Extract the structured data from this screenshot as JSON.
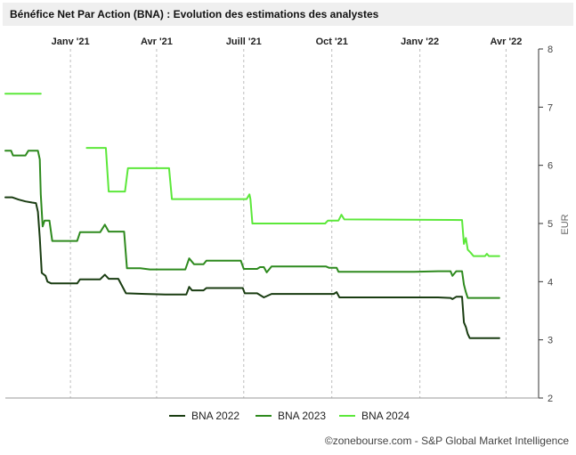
{
  "header": {
    "title": "Bénéfice Net Par Action (BNA) : Evolution des estimations des analystes"
  },
  "footer": {
    "copyright": "©zonebourse.com - S&P Global Market Intelligence"
  },
  "chart_data": {
    "type": "line",
    "title": "Bénéfice Net Par Action (BNA) : Evolution des estimations des analystes",
    "ylabel": "EUR",
    "ylim": [
      2,
      8
    ],
    "yticks": [
      "8",
      "7",
      "6",
      "5",
      "4",
      "3",
      "2"
    ],
    "xlim": [
      "2020-10-25",
      "2022-05-05"
    ],
    "xticks": [
      {
        "date": "2021-01-01",
        "label": "Janv '21"
      },
      {
        "date": "2021-04-01",
        "label": "Avr '21"
      },
      {
        "date": "2021-07-01",
        "label": "Juill '21"
      },
      {
        "date": "2021-10-01",
        "label": "Oct '21"
      },
      {
        "date": "2022-01-01",
        "label": "Janv '22"
      },
      {
        "date": "2022-04-01",
        "label": "Avr '22"
      }
    ],
    "grid": "vertical-dashed",
    "legend_position": "bottom-center",
    "series": [
      {
        "name": "BNA 2022",
        "color": "#1a3d12",
        "points": [
          [
            "2020-10-25",
            5.45
          ],
          [
            "2020-11-01",
            5.45
          ],
          [
            "2020-11-08",
            5.41
          ],
          [
            "2020-11-15",
            5.38
          ],
          [
            "2020-11-22",
            5.36
          ],
          [
            "2020-11-26",
            5.35
          ],
          [
            "2020-11-28",
            5.2
          ],
          [
            "2020-11-30",
            4.75
          ],
          [
            "2020-12-02",
            4.15
          ],
          [
            "2020-12-06",
            4.1
          ],
          [
            "2020-12-08",
            4.0
          ],
          [
            "2020-12-12",
            3.97
          ],
          [
            "2020-12-25",
            3.97
          ],
          [
            "2021-01-08",
            3.97
          ],
          [
            "2021-01-11",
            4.04
          ],
          [
            "2021-01-25",
            4.04
          ],
          [
            "2021-02-01",
            4.04
          ],
          [
            "2021-02-06",
            4.12
          ],
          [
            "2021-02-10",
            4.05
          ],
          [
            "2021-02-20",
            4.05
          ],
          [
            "2021-02-28",
            3.8
          ],
          [
            "2021-03-20",
            3.79
          ],
          [
            "2021-04-10",
            3.78
          ],
          [
            "2021-05-02",
            3.78
          ],
          [
            "2021-05-05",
            3.91
          ],
          [
            "2021-05-08",
            3.85
          ],
          [
            "2021-05-20",
            3.85
          ],
          [
            "2021-05-23",
            3.89
          ],
          [
            "2021-06-30",
            3.89
          ],
          [
            "2021-07-02",
            3.8
          ],
          [
            "2021-07-15",
            3.8
          ],
          [
            "2021-07-22",
            3.73
          ],
          [
            "2021-07-30",
            3.79
          ],
          [
            "2021-09-30",
            3.79
          ],
          [
            "2021-10-03",
            3.79
          ],
          [
            "2021-10-06",
            3.82
          ],
          [
            "2021-10-09",
            3.73
          ],
          [
            "2021-12-05",
            3.73
          ],
          [
            "2021-12-26",
            3.73
          ],
          [
            "2022-01-20",
            3.73
          ],
          [
            "2022-02-02",
            3.72
          ],
          [
            "2022-02-04",
            3.7
          ],
          [
            "2022-02-08",
            3.74
          ],
          [
            "2022-02-14",
            3.74
          ],
          [
            "2022-02-16",
            3.3
          ],
          [
            "2022-02-18",
            3.22
          ],
          [
            "2022-02-20",
            3.1
          ],
          [
            "2022-02-22",
            3.03
          ],
          [
            "2022-03-25",
            3.03
          ]
        ]
      },
      {
        "name": "BNA 2023",
        "color": "#2e8a1e",
        "points": [
          [
            "2020-10-25",
            6.25
          ],
          [
            "2020-10-31",
            6.25
          ],
          [
            "2020-11-02",
            6.17
          ],
          [
            "2020-11-15",
            6.17
          ],
          [
            "2020-11-18",
            6.25
          ],
          [
            "2020-11-28",
            6.25
          ],
          [
            "2020-11-30",
            6.1
          ],
          [
            "2020-12-01",
            5.5
          ],
          [
            "2020-12-03",
            4.95
          ],
          [
            "2020-12-05",
            5.05
          ],
          [
            "2020-12-10",
            5.05
          ],
          [
            "2020-12-13",
            4.7
          ],
          [
            "2021-01-08",
            4.7
          ],
          [
            "2021-01-11",
            4.85
          ],
          [
            "2021-01-25",
            4.85
          ],
          [
            "2021-02-01",
            4.85
          ],
          [
            "2021-02-06",
            4.98
          ],
          [
            "2021-02-10",
            4.86
          ],
          [
            "2021-02-26",
            4.86
          ],
          [
            "2021-03-01",
            4.23
          ],
          [
            "2021-03-15",
            4.23
          ],
          [
            "2021-03-25",
            4.21
          ],
          [
            "2021-05-01",
            4.21
          ],
          [
            "2021-05-05",
            4.4
          ],
          [
            "2021-05-10",
            4.3
          ],
          [
            "2021-05-20",
            4.3
          ],
          [
            "2021-05-23",
            4.36
          ],
          [
            "2021-06-28",
            4.36
          ],
          [
            "2021-07-01",
            4.22
          ],
          [
            "2021-07-15",
            4.22
          ],
          [
            "2021-07-18",
            4.25
          ],
          [
            "2021-07-22",
            4.25
          ],
          [
            "2021-07-25",
            4.16
          ],
          [
            "2021-07-30",
            4.26
          ],
          [
            "2021-09-25",
            4.26
          ],
          [
            "2021-09-28",
            4.24
          ],
          [
            "2021-10-06",
            4.24
          ],
          [
            "2021-10-08",
            4.17
          ],
          [
            "2021-12-26",
            4.17
          ],
          [
            "2022-01-20",
            4.18
          ],
          [
            "2022-02-02",
            4.18
          ],
          [
            "2022-02-04",
            4.1
          ],
          [
            "2022-02-08",
            4.18
          ],
          [
            "2022-02-14",
            4.18
          ],
          [
            "2022-02-16",
            3.95
          ],
          [
            "2022-02-18",
            3.82
          ],
          [
            "2022-02-20",
            3.72
          ],
          [
            "2022-03-25",
            3.72
          ]
        ]
      },
      {
        "name": "BNA 2024",
        "color": "#5ce83a",
        "points_segments": [
          [
            [
              "2020-10-25",
              7.23
            ],
            [
              "2020-12-01",
              7.23
            ]
          ],
          [
            [
              "2021-01-18",
              6.3
            ],
            [
              "2021-02-07",
              6.3
            ],
            [
              "2021-02-10",
              5.55
            ],
            [
              "2021-02-27",
              5.55
            ],
            [
              "2021-03-02",
              5.95
            ],
            [
              "2021-04-14",
              5.95
            ],
            [
              "2021-04-17",
              5.42
            ],
            [
              "2021-07-04",
              5.42
            ],
            [
              "2021-07-07",
              5.5
            ],
            [
              "2021-07-08",
              5.42
            ],
            [
              "2021-07-10",
              5.0
            ],
            [
              "2021-09-24",
              5.0
            ],
            [
              "2021-09-27",
              5.05
            ],
            [
              "2021-10-08",
              5.05
            ],
            [
              "2021-10-11",
              5.15
            ],
            [
              "2021-10-14",
              5.07
            ],
            [
              "2022-02-14",
              5.06
            ],
            [
              "2022-02-16",
              4.65
            ],
            [
              "2022-02-18",
              4.75
            ],
            [
              "2022-02-20",
              4.55
            ],
            [
              "2022-02-23",
              4.5
            ],
            [
              "2022-02-26",
              4.44
            ],
            [
              "2022-03-10",
              4.44
            ],
            [
              "2022-03-12",
              4.48
            ],
            [
              "2022-03-14",
              4.44
            ],
            [
              "2022-03-25",
              4.44
            ]
          ]
        ]
      }
    ]
  }
}
